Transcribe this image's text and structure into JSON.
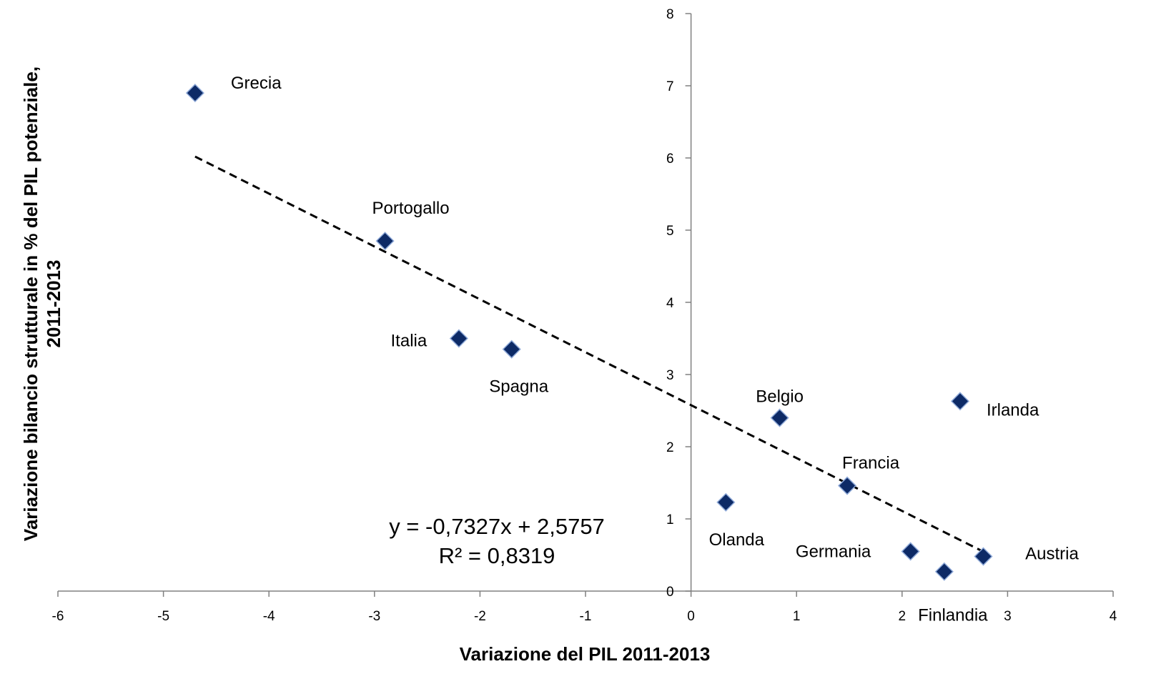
{
  "chart_data": {
    "type": "scatter",
    "xlabel": "Variazione del PIL 2011-2013",
    "ylabel_lines": [
      "Variazione bilancio strutturale in % del PIL potenziale,",
      "2011-2013"
    ],
    "xlim": [
      -6,
      4
    ],
    "ylim": [
      0,
      8
    ],
    "x_ticks": [
      "-6",
      "-5",
      "-4",
      "-3",
      "-2",
      "-1",
      "0",
      "1",
      "2",
      "3",
      "4"
    ],
    "y_ticks": [
      "0",
      "1",
      "2",
      "3",
      "4",
      "5",
      "6",
      "7",
      "8"
    ],
    "grid": false,
    "marker_color": "#0d2a66",
    "marker_edge": "#8ea9d8",
    "points": [
      {
        "label": "Grecia",
        "x": -4.7,
        "y": 6.9
      },
      {
        "label": "Portogallo",
        "x": -2.9,
        "y": 4.85
      },
      {
        "label": "Italia",
        "x": -2.2,
        "y": 3.5
      },
      {
        "label": "Spagna",
        "x": -1.7,
        "y": 3.35
      },
      {
        "label": "Belgio",
        "x": 0.84,
        "y": 2.4
      },
      {
        "label": "Irlanda",
        "x": 2.55,
        "y": 2.63
      },
      {
        "label": "Francia",
        "x": 1.48,
        "y": 1.46
      },
      {
        "label": "Olanda",
        "x": 0.33,
        "y": 1.23
      },
      {
        "label": "Germania",
        "x": 2.08,
        "y": 0.55
      },
      {
        "label": "Finlandia",
        "x": 2.4,
        "y": 0.27
      },
      {
        "label": "Austria",
        "x": 2.77,
        "y": 0.48
      }
    ],
    "trendline": {
      "slope": -0.7327,
      "intercept": 2.5757,
      "x_range": [
        -4.7,
        2.77
      ],
      "style": "dashed",
      "equation": "y = -0,7327x + 2,5757",
      "r_squared": "R² = 0,8319"
    }
  }
}
